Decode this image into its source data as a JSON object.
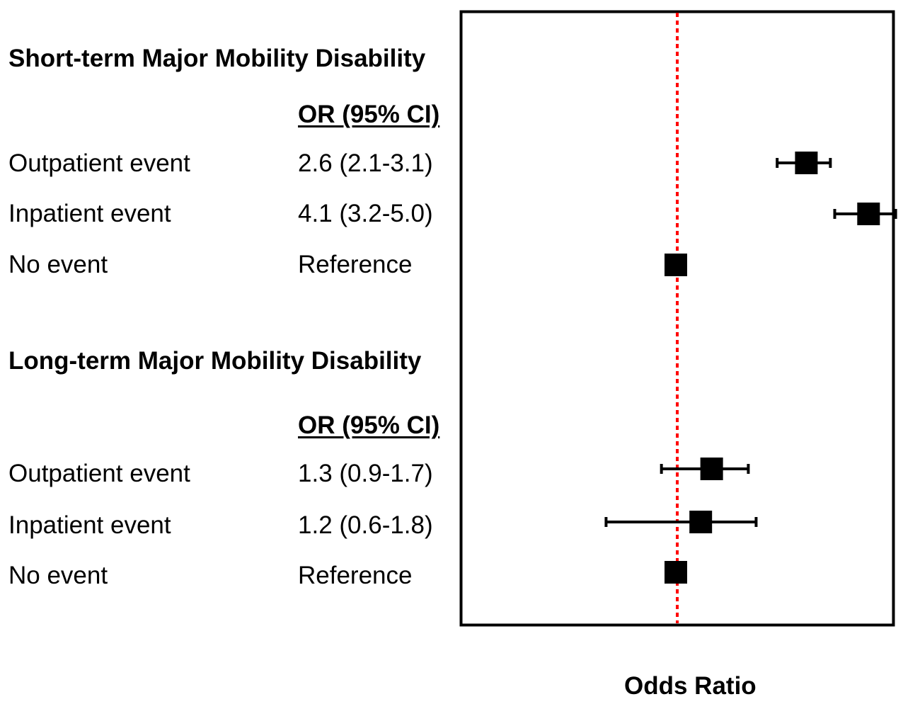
{
  "chart_data": {
    "type": "forest",
    "xlabel": "Odds Ratio",
    "reference_line": 1.0,
    "reference_line_color": "#ff0000",
    "marker_color": "#000000",
    "groups": [
      {
        "title": "Short-term Major Mobility Disability",
        "column_header": "OR (95% CI)",
        "rows": [
          {
            "label": "Outpatient event",
            "value_text": "2.6 (2.1-3.1)",
            "or": 2.6,
            "ci": [
              2.1,
              3.1
            ]
          },
          {
            "label": "Inpatient event",
            "value_text": "4.1 (3.2-5.0)",
            "or": 4.1,
            "ci": [
              3.2,
              5.0
            ]
          },
          {
            "label": "No event",
            "value_text": "Reference",
            "or": 1.0,
            "ci": null
          }
        ]
      },
      {
        "title": "Long-term Major Mobility Disability",
        "column_header": "OR (95% CI)",
        "rows": [
          {
            "label": "Outpatient event",
            "value_text": "1.3 (0.9-1.7)",
            "or": 1.3,
            "ci": [
              0.9,
              1.7
            ]
          },
          {
            "label": "Inpatient event",
            "value_text": "1.2 (0.6-1.8)",
            "or": 1.2,
            "ci": [
              0.6,
              1.8
            ]
          },
          {
            "label": "No event",
            "value_text": "Reference",
            "or": 1.0,
            "ci": null
          }
        ]
      }
    ]
  }
}
